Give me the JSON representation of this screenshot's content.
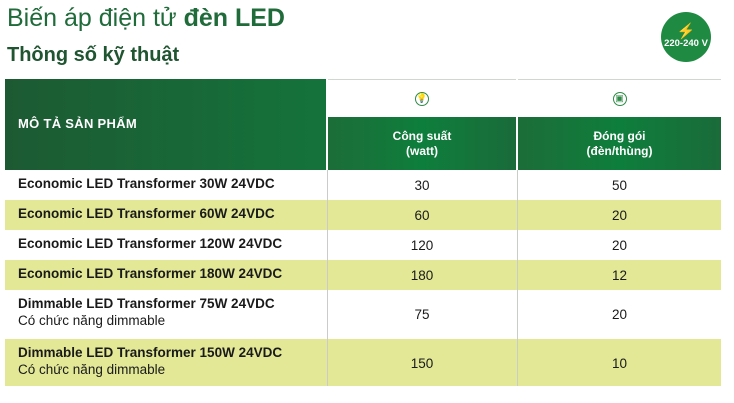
{
  "page": {
    "title_regular": "Biến áp điện tử",
    "title_bold": "đèn LED",
    "subtitle": "Thông số kỹ thuật"
  },
  "badge": {
    "text": "220-240 V",
    "icon": "lightning-bolt-icon"
  },
  "table": {
    "header_desc": "MÔ TẢ SẢN PHẨM",
    "columns": [
      {
        "label_line1": "Công suất",
        "label_line2": "(watt)",
        "icon": "light-bulb-icon"
      },
      {
        "label_line1": "Đóng gói",
        "label_line2": "(đèn/thùng)",
        "icon": "package-box-icon"
      }
    ],
    "rows": [
      {
        "name": "Economic LED Transformer 30W 24VDC",
        "note": "",
        "power": "30",
        "pack": "50"
      },
      {
        "name": "Economic LED Transformer 60W 24VDC",
        "note": "",
        "power": "60",
        "pack": "20"
      },
      {
        "name": "Economic LED Transformer 120W 24VDC",
        "note": "",
        "power": "120",
        "pack": "20"
      },
      {
        "name": "Economic LED Transformer 180W 24VDC",
        "note": "",
        "power": "180",
        "pack": "12"
      },
      {
        "name": "Dimmable LED Transformer 75W 24VDC",
        "note": "Có chức năng dimmable",
        "power": "75",
        "pack": "20"
      },
      {
        "name": "Dimmable LED Transformer 150W 24VDC",
        "note": "Có chức năng dimmable",
        "power": "150",
        "pack": "10"
      }
    ]
  },
  "colors": {
    "brand_green": "#1f6b3a",
    "row_highlight": "#e2e895"
  }
}
